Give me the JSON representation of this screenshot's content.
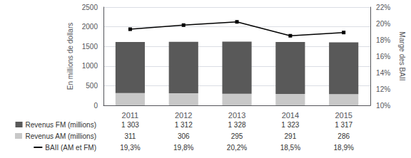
{
  "chart_data": {
    "type": "bar",
    "categories": [
      "2011",
      "2012",
      "2013",
      "2014",
      "2015"
    ],
    "stacked": true,
    "grid": true,
    "data_labels": true,
    "ylabel": "En millions de dollars",
    "y2label": "Marge des BAII",
    "ylim": [
      0,
      2500
    ],
    "yticks": [
      0,
      500,
      1000,
      1500,
      2000,
      2500
    ],
    "y2lim": [
      10,
      22
    ],
    "y2ticks": [
      {
        "value": 10,
        "label": "10%"
      },
      {
        "value": 12,
        "label": "12%"
      },
      {
        "value": 14,
        "label": "14%"
      },
      {
        "value": 16,
        "label": "16%"
      },
      {
        "value": 18,
        "label": "18%"
      },
      {
        "value": 20,
        "label": "20%"
      },
      {
        "value": 22,
        "label": "22%"
      }
    ],
    "series": [
      {
        "name": "Revenus AM (millions)",
        "color": "#c8c8c8",
        "values": [
          311,
          306,
          295,
          291,
          286
        ]
      },
      {
        "name": "Revenus FM (millions)",
        "color": "#595959",
        "values": [
          1303,
          1312,
          1328,
          1323,
          1317
        ],
        "value_labels": [
          "1 303",
          "1 312",
          "1 328",
          "1 323",
          "1 317"
        ]
      },
      {
        "name": "BAII (AM et FM)",
        "type": "line",
        "axis": "y2",
        "color": "#000000",
        "marker": "square",
        "values": [
          19.3,
          19.8,
          20.2,
          18.5,
          18.9
        ],
        "value_labels": [
          "19,3%",
          "19,8%",
          "20,2%",
          "18,5%",
          "18,9%"
        ]
      }
    ]
  }
}
